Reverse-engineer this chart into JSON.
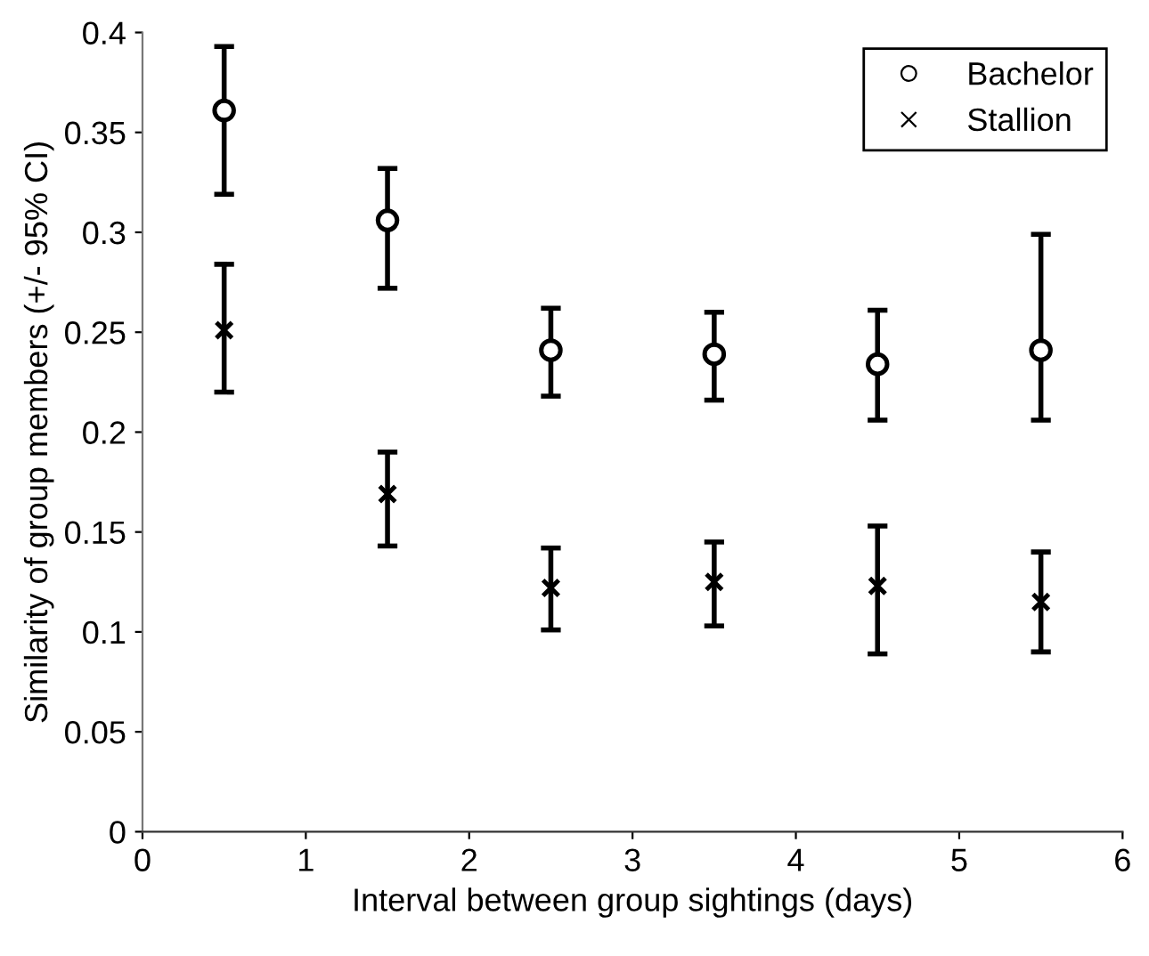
{
  "chart_data": {
    "type": "scatter",
    "xlabel": "Interval between group sightings (days)",
    "ylabel": "Similarity of group members (+/- 95% CI)",
    "x": [
      0.5,
      1.5,
      2.5,
      3.5,
      4.5,
      5.5
    ],
    "series": [
      {
        "name": "Bachelor",
        "color": "#000000",
        "marker": "circle",
        "values": [
          0.361,
          0.306,
          0.241,
          0.239,
          0.234,
          0.241
        ],
        "errors": [
          [
            0.319,
            0.393
          ],
          [
            0.272,
            0.332
          ],
          [
            0.218,
            0.262
          ],
          [
            0.216,
            0.26
          ],
          [
            0.206,
            0.261
          ],
          [
            0.206,
            0.299
          ]
        ]
      },
      {
        "name": "Stallion",
        "color": "#000000",
        "marker": "cross",
        "values": [
          0.251,
          0.169,
          0.122,
          0.125,
          0.123,
          0.115
        ],
        "errors": [
          [
            0.22,
            0.284
          ],
          [
            0.143,
            0.19
          ],
          [
            0.101,
            0.142
          ],
          [
            0.103,
            0.145
          ],
          [
            0.089,
            0.153
          ],
          [
            0.09,
            0.14
          ]
        ]
      }
    ],
    "xlim": [
      0,
      6
    ],
    "xticks": [
      0,
      1,
      2,
      3,
      4,
      5,
      6
    ],
    "ylim": [
      0,
      0.4
    ],
    "yticks": [
      0,
      0.05,
      0.1,
      0.15,
      0.2,
      0.25,
      0.3,
      0.35,
      0.4
    ],
    "grid": false,
    "legend": "top right"
  }
}
